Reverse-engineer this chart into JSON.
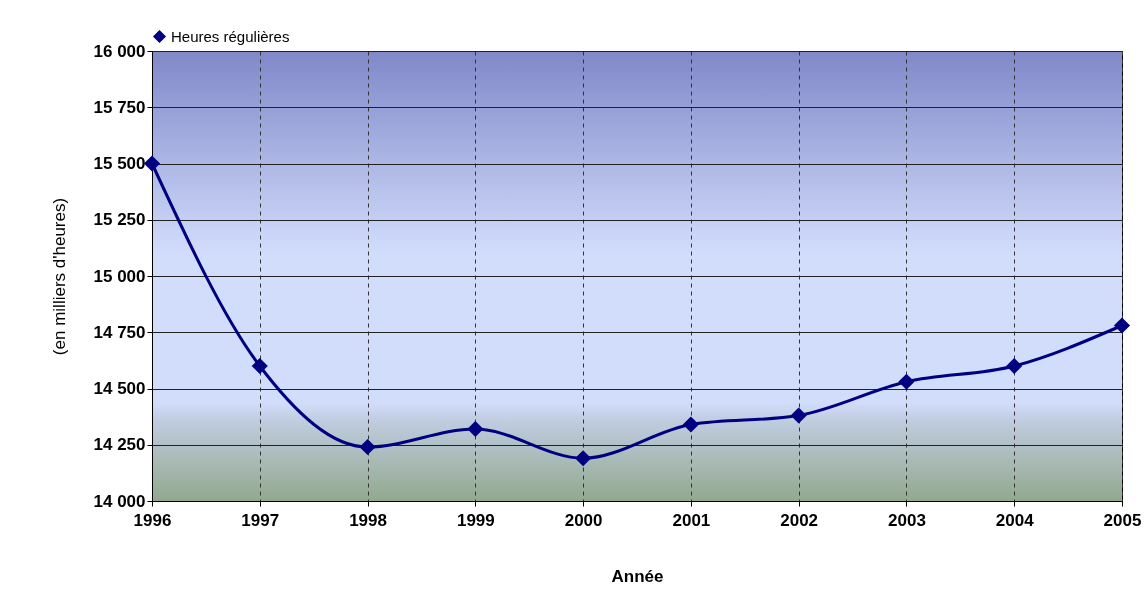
{
  "chart_data": {
    "type": "line",
    "xlabel": "Année",
    "ylabel": "(en milliers d'heures)",
    "x": [
      1996,
      1997,
      1998,
      1999,
      2000,
      2001,
      2002,
      2003,
      2004,
      2005
    ],
    "series": [
      {
        "name": "Heures régulières",
        "color": "#000080",
        "values": [
          15500,
          14600,
          14240,
          14320,
          14190,
          14340,
          14380,
          14530,
          14600,
          14780
        ]
      }
    ],
    "xlim": [
      1996,
      2005
    ],
    "xticks": [
      1996,
      1997,
      1998,
      1999,
      2000,
      2001,
      2002,
      2003,
      2004,
      2005
    ],
    "ylim": [
      14000,
      16000
    ],
    "yticks": [
      {
        "value": 14000,
        "label": "14 000"
      },
      {
        "value": 14250,
        "label": "14 250"
      },
      {
        "value": 14500,
        "label": "14 500"
      },
      {
        "value": 14750,
        "label": "14 750"
      },
      {
        "value": 15000,
        "label": "15 000"
      },
      {
        "value": 15250,
        "label": "15 250"
      },
      {
        "value": 15500,
        "label": "15 500"
      },
      {
        "value": 15750,
        "label": "15 750"
      },
      {
        "value": 16000,
        "label": "16 000"
      }
    ],
    "grid": true,
    "legend": "top",
    "marker": "diamond",
    "line_style": "solid"
  }
}
